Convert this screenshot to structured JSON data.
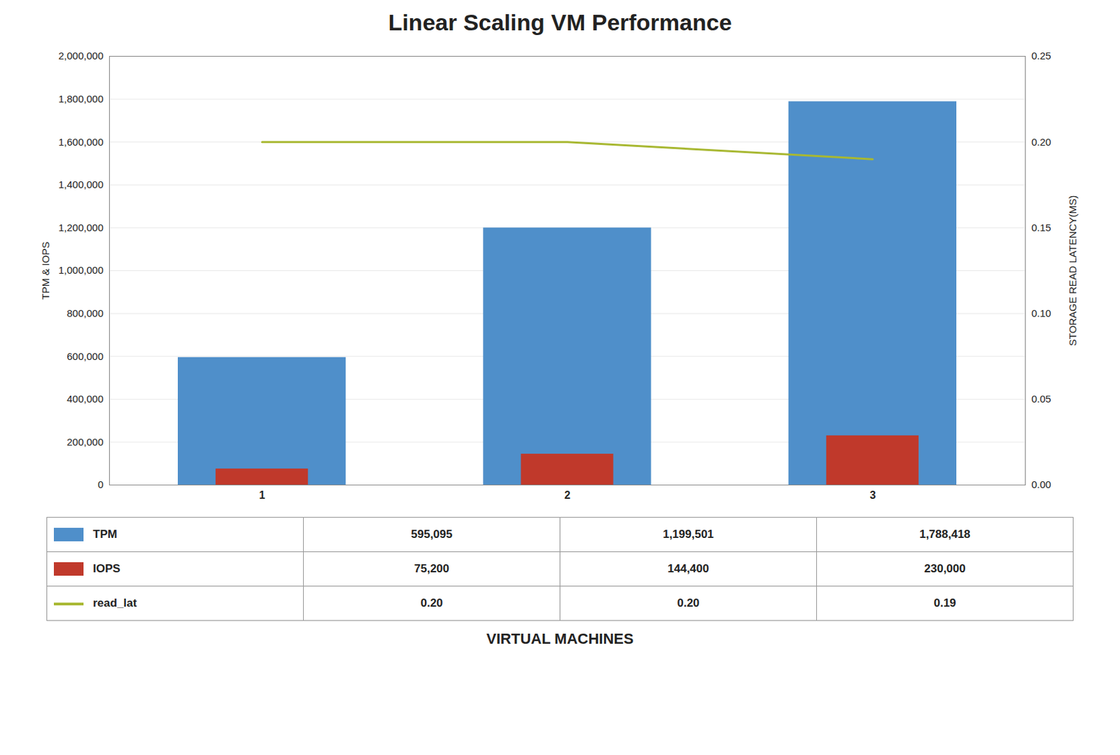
{
  "chart_data": {
    "type": "bar",
    "title": "Linear Scaling VM Performance",
    "xlabel": "VIRTUAL MACHINES",
    "ylabel": "TPM & IOPS",
    "y2label": "STORAGE READ LATENCY(MS)",
    "x": [
      1,
      2,
      3
    ],
    "xlim": [
      0.5,
      3.5
    ],
    "xticks": [
      1,
      2,
      3
    ],
    "ylim": [
      0,
      2000000
    ],
    "yticks": [
      0,
      {
        "value": 200000,
        "label": "200,000"
      },
      {
        "value": 400000,
        "label": "400,000"
      },
      {
        "value": 600000,
        "label": "600,000"
      },
      {
        "value": 800000,
        "label": "800,000"
      },
      {
        "value": 1000000,
        "label": "1,000,000"
      },
      {
        "value": 1200000,
        "label": "1,200,000"
      },
      {
        "value": 1400000,
        "label": "1,400,000"
      },
      {
        "value": 1600000,
        "label": "1,600,000"
      },
      {
        "value": 1800000,
        "label": "1,800,000"
      },
      {
        "value": 2000000,
        "label": "2,000,000"
      }
    ],
    "y2lim": [
      0,
      0.25
    ],
    "y2ticks": [
      {
        "value": 0,
        "label": "0.00"
      },
      0.05,
      {
        "value": 0.1,
        "label": "0.10"
      },
      0.15,
      {
        "value": 0.2,
        "label": "0.20"
      },
      0.25
    ],
    "grid": true,
    "series": [
      {
        "name": "TPM",
        "type": "bar",
        "color": "#4f8fca",
        "values": [
          595095,
          1199501,
          1788418
        ],
        "value_labels": [
          "595,095",
          "1,199,501",
          "1,788,418"
        ]
      },
      {
        "name": "IOPS",
        "type": "bar",
        "color": "#c0392b",
        "values": [
          75200,
          144400,
          230000
        ],
        "value_labels": [
          "75,200",
          "144,400",
          "230,000"
        ]
      },
      {
        "name": "read_lat",
        "type": "line",
        "axis": "y2",
        "color": "#a8b832",
        "values": [
          0.2,
          0.2,
          0.19
        ],
        "value_labels": [
          "0.20",
          "0.20",
          "0.19"
        ]
      }
    ]
  }
}
